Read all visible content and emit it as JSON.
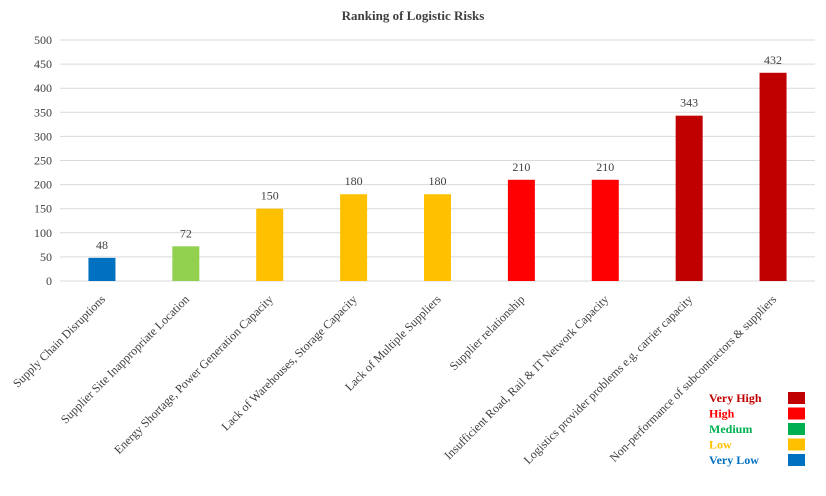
{
  "chart_data": {
    "type": "bar",
    "title": "Ranking of Logistic Risks",
    "xlabel": "",
    "ylabel": "",
    "ylim": [
      0,
      500
    ],
    "yticks": [
      0,
      50,
      100,
      150,
      200,
      250,
      300,
      350,
      400,
      450,
      500
    ],
    "grid": true,
    "legend_position": "bottom-right",
    "categories": [
      "Supply Chain Disruptions",
      "Supplier Site Inappropriate Location",
      "Energy Shortage, Power Generation Capacity",
      "Lack of Warehouses, Storage Capacity",
      "Lack of Multiple Suppliers",
      "Supplier relationship",
      "Insufficient Road, Rail & IT Network Capacity",
      "Logistics provider problems e.g. carrier capacity",
      "Non-performance of subcontractors & suppliers"
    ],
    "values": [
      48,
      72,
      150,
      180,
      180,
      210,
      210,
      343,
      432
    ],
    "value_labels": [
      "48",
      "72",
      "150",
      "180",
      "180",
      "210",
      "210",
      "343",
      "432"
    ],
    "bar_colors": [
      "#0070C0",
      "#92D050",
      "#FFC000",
      "#FFC000",
      "#FFC000",
      "#FF0000",
      "#FF0000",
      "#C00000",
      "#C00000"
    ],
    "legend": [
      {
        "label": "Very High",
        "color": "#C00000"
      },
      {
        "label": "High",
        "color": "#FF0000"
      },
      {
        "label": "Medium",
        "color": "#00B050"
      },
      {
        "label": "Low",
        "color": "#FFC000"
      },
      {
        "label": "Very Low",
        "color": "#0070C0"
      }
    ]
  }
}
